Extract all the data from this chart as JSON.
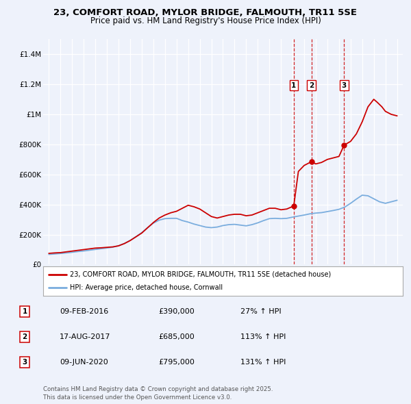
{
  "title": "23, COMFORT ROAD, MYLOR BRIDGE, FALMOUTH, TR11 5SE",
  "subtitle": "Price paid vs. HM Land Registry's House Price Index (HPI)",
  "title_fontsize": 9.5,
  "subtitle_fontsize": 8.5,
  "background_color": "#eef2fb",
  "plot_bg_color": "#eef2fb",
  "legend_label_red": "23, COMFORT ROAD, MYLOR BRIDGE, FALMOUTH, TR11 5SE (detached house)",
  "legend_label_blue": "HPI: Average price, detached house, Cornwall",
  "footer": "Contains HM Land Registry data © Crown copyright and database right 2025.\nThis data is licensed under the Open Government Licence v3.0.",
  "ylim": [
    0,
    1500000
  ],
  "yticks": [
    0,
    200000,
    400000,
    600000,
    800000,
    1000000,
    1200000,
    1400000
  ],
  "ytick_labels": [
    "£0",
    "£200K",
    "£400K",
    "£600K",
    "£800K",
    "£1M",
    "£1.2M",
    "£1.4M"
  ],
  "red_color": "#cc0000",
  "blue_color": "#7aadde",
  "marker_color": "#cc0000",
  "vline_color": "#cc0000",
  "purchase_events": [
    {
      "label": "1",
      "date_num": 2016.1,
      "price": 390000,
      "hpi_pct": "27%",
      "date_str": "09-FEB-2016"
    },
    {
      "label": "2",
      "date_num": 2017.63,
      "price": 685000,
      "hpi_pct": "113%",
      "date_str": "17-AUG-2017"
    },
    {
      "label": "3",
      "date_num": 2020.44,
      "price": 795000,
      "hpi_pct": "131%",
      "date_str": "09-JUN-2020"
    }
  ],
  "red_x": [
    1995.0,
    1995.5,
    1996.0,
    1996.5,
    1997.0,
    1997.5,
    1998.0,
    1998.5,
    1999.0,
    1999.5,
    2000.0,
    2000.5,
    2001.0,
    2001.5,
    2002.0,
    2002.5,
    2003.0,
    2003.5,
    2004.0,
    2004.5,
    2005.0,
    2005.5,
    2006.0,
    2006.5,
    2007.0,
    2007.5,
    2008.0,
    2008.5,
    2009.0,
    2009.5,
    2010.0,
    2010.5,
    2011.0,
    2011.5,
    2012.0,
    2012.5,
    2013.0,
    2013.5,
    2014.0,
    2014.5,
    2015.0,
    2015.5,
    2016.1,
    2016.5,
    2017.0,
    2017.63,
    2018.0,
    2018.5,
    2019.0,
    2019.5,
    2020.0,
    2020.44,
    2021.0,
    2021.5,
    2022.0,
    2022.5,
    2023.0,
    2023.3,
    2023.7,
    2024.0,
    2024.5,
    2025.0
  ],
  "red_y": [
    75000,
    78000,
    80000,
    85000,
    90000,
    95000,
    100000,
    105000,
    110000,
    112000,
    115000,
    118000,
    125000,
    140000,
    160000,
    185000,
    210000,
    245000,
    280000,
    310000,
    330000,
    345000,
    355000,
    375000,
    395000,
    385000,
    370000,
    345000,
    320000,
    310000,
    320000,
    330000,
    335000,
    335000,
    325000,
    330000,
    345000,
    360000,
    375000,
    375000,
    365000,
    370000,
    390000,
    620000,
    660000,
    685000,
    670000,
    680000,
    700000,
    710000,
    720000,
    795000,
    820000,
    870000,
    950000,
    1050000,
    1100000,
    1080000,
    1050000,
    1020000,
    1000000,
    990000
  ],
  "blue_x": [
    1995.0,
    1995.5,
    1996.0,
    1996.5,
    1997.0,
    1997.5,
    1998.0,
    1998.5,
    1999.0,
    1999.5,
    2000.0,
    2000.5,
    2001.0,
    2001.5,
    2002.0,
    2002.5,
    2003.0,
    2003.5,
    2004.0,
    2004.5,
    2005.0,
    2005.5,
    2006.0,
    2006.5,
    2007.0,
    2007.5,
    2008.0,
    2008.5,
    2009.0,
    2009.5,
    2010.0,
    2010.5,
    2011.0,
    2011.5,
    2012.0,
    2012.5,
    2013.0,
    2013.5,
    2014.0,
    2014.5,
    2015.0,
    2015.5,
    2016.0,
    2016.5,
    2017.0,
    2017.5,
    2018.0,
    2018.5,
    2019.0,
    2019.5,
    2020.0,
    2020.5,
    2021.0,
    2021.5,
    2022.0,
    2022.5,
    2023.0,
    2023.5,
    2024.0,
    2024.5,
    2025.0
  ],
  "blue_y": [
    68000,
    71000,
    74000,
    78000,
    82000,
    87000,
    91000,
    96000,
    101000,
    106000,
    111000,
    116000,
    126000,
    141000,
    161000,
    186000,
    213000,
    246000,
    276000,
    296000,
    306000,
    308000,
    308000,
    293000,
    283000,
    270000,
    260000,
    250000,
    246000,
    250000,
    260000,
    266000,
    268000,
    263000,
    258000,
    266000,
    278000,
    293000,
    306000,
    308000,
    306000,
    308000,
    316000,
    323000,
    330000,
    338000,
    343000,
    346000,
    353000,
    360000,
    368000,
    383000,
    408000,
    436000,
    462000,
    458000,
    438000,
    418000,
    408000,
    418000,
    428000
  ],
  "xlim": [
    1994.5,
    2025.5
  ],
  "xticks": [
    1995,
    1996,
    1997,
    1998,
    1999,
    2000,
    2001,
    2002,
    2003,
    2004,
    2005,
    2006,
    2007,
    2008,
    2009,
    2010,
    2011,
    2012,
    2013,
    2014,
    2015,
    2016,
    2017,
    2018,
    2019,
    2020,
    2021,
    2022,
    2023,
    2024,
    2025
  ]
}
